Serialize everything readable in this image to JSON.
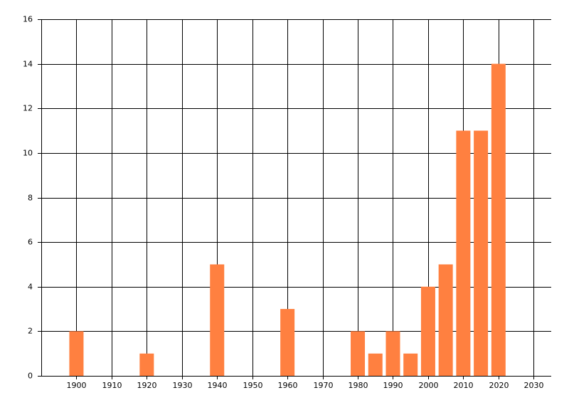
{
  "chart_data": {
    "type": "bar",
    "x": [
      1900,
      1920,
      1940,
      1960,
      1980,
      1985,
      1990,
      1995,
      2000,
      2005,
      2010,
      2015,
      2020
    ],
    "values": [
      2,
      1,
      5,
      3,
      2,
      1,
      2,
      1,
      4,
      5,
      11,
      11,
      14
    ],
    "color": "#ff8040",
    "xlim": [
      1890,
      2035
    ],
    "xticks": [
      1900,
      1910,
      1920,
      1930,
      1940,
      1950,
      1960,
      1970,
      1980,
      1990,
      2000,
      2010,
      2020,
      2030
    ],
    "ylim": [
      0,
      16
    ],
    "yticks": [
      0,
      2,
      4,
      6,
      8,
      10,
      12,
      14,
      16
    ],
    "grid": true
  }
}
